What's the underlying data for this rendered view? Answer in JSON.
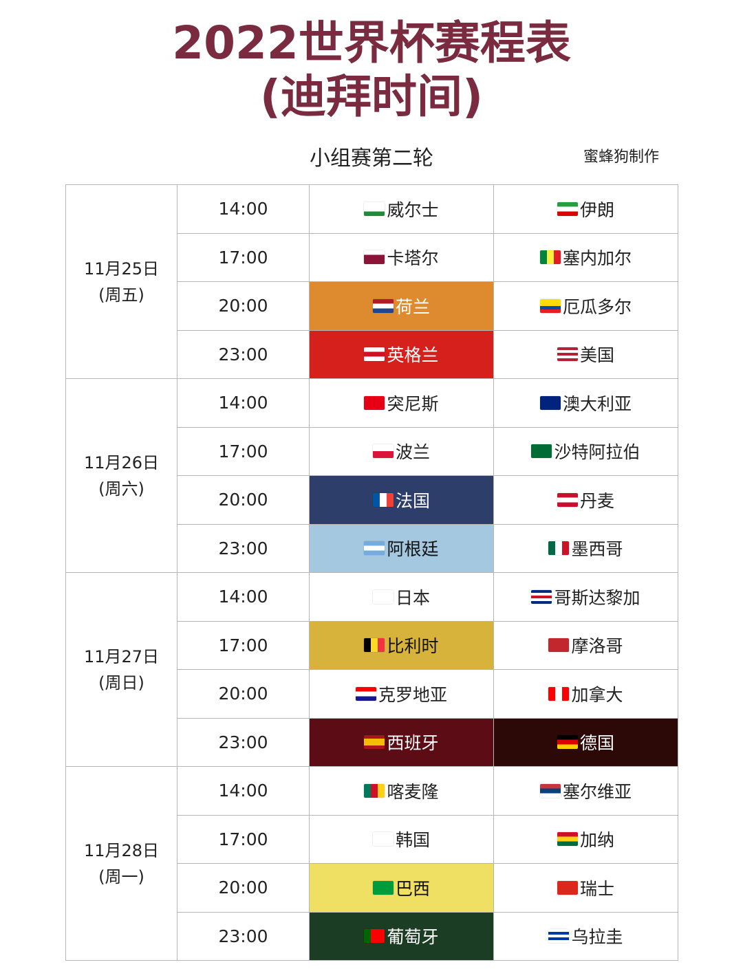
{
  "title_line1": "2022世界杯赛程表",
  "title_line2": "(迪拜时间)",
  "subtitle": "小组赛第二轮",
  "maker": "蜜蜂狗制作",
  "days": [
    {
      "date": "11月25日",
      "weekday": "(周五)",
      "matches": [
        {
          "time": "14:00",
          "home": {
            "name": "威尔士",
            "flag": [
              "#ffffff",
              "#ffffff",
              "#1f8a3b"
            ],
            "bg": null,
            "fg": null
          },
          "away": {
            "name": "伊朗",
            "flag": [
              "#239f40",
              "#ffffff",
              "#da0000"
            ]
          }
        },
        {
          "time": "17:00",
          "home": {
            "name": "卡塔尔",
            "flag": [
              "#ffffff",
              "#8a1538",
              "#8a1538"
            ]
          },
          "away": {
            "name": "塞内加尔",
            "flag": [
              "#00853f",
              "#fdef42",
              "#e31b23"
            ],
            "vertical": true
          }
        },
        {
          "time": "20:00",
          "home": {
            "name": "荷兰",
            "flag": [
              "#ae1c28",
              "#ffffff",
              "#21468b"
            ],
            "bg": "#de8a2f",
            "fg": "#ffffff"
          },
          "away": {
            "name": "厄瓜多尔",
            "flag": [
              "#ffdd00",
              "#ffdd00",
              "#034ea2",
              "#ed1c24"
            ]
          }
        },
        {
          "time": "23:00",
          "home": {
            "name": "英格兰",
            "flag": [
              "#ffffff",
              "#ce1124",
              "#ffffff"
            ],
            "bg": "#d5201c",
            "fg": "#ffffff"
          },
          "away": {
            "name": "美国",
            "flag": [
              "#b22234",
              "#ffffff",
              "#b22234",
              "#ffffff",
              "#b22234"
            ]
          }
        }
      ]
    },
    {
      "date": "11月26日",
      "weekday": "(周六)",
      "matches": [
        {
          "time": "14:00",
          "home": {
            "name": "突尼斯",
            "flag": [
              "#e70013",
              "#e70013",
              "#e70013"
            ]
          },
          "away": {
            "name": "澳大利亚",
            "flag": [
              "#00247d",
              "#00247d",
              "#00247d"
            ]
          }
        },
        {
          "time": "17:00",
          "home": {
            "name": "波兰",
            "flag": [
              "#ffffff",
              "#dc143c"
            ]
          },
          "away": {
            "name": "沙特阿拉伯",
            "flag": [
              "#006c35",
              "#006c35"
            ]
          }
        },
        {
          "time": "20:00",
          "home": {
            "name": "法国",
            "flag": [
              "#0055a4",
              "#ffffff",
              "#ef4135"
            ],
            "vertical": true,
            "bg": "#2c3e69",
            "fg": "#ffffff"
          },
          "away": {
            "name": "丹麦",
            "flag": [
              "#c8102e",
              "#ffffff",
              "#c8102e"
            ]
          }
        },
        {
          "time": "23:00",
          "home": {
            "name": "阿根廷",
            "flag": [
              "#74acdf",
              "#ffffff",
              "#74acdf"
            ],
            "bg": "#a3c8e0",
            "fg": "#111111"
          },
          "away": {
            "name": "墨西哥",
            "flag": [
              "#006847",
              "#ffffff",
              "#ce1126"
            ],
            "vertical": true
          }
        }
      ]
    },
    {
      "date": "11月27日",
      "weekday": "(周日)",
      "matches": [
        {
          "time": "14:00",
          "home": {
            "name": "日本",
            "flag": [
              "#ffffff",
              "#ffffff"
            ]
          },
          "away": {
            "name": "哥斯达黎加",
            "flag": [
              "#002b7f",
              "#ffffff",
              "#ce1126",
              "#ffffff",
              "#002b7f"
            ]
          }
        },
        {
          "time": "17:00",
          "home": {
            "name": "比利时",
            "flag": [
              "#000000",
              "#fdda24",
              "#ef3340"
            ],
            "vertical": true,
            "bg": "#d8b33c",
            "fg": "#111111"
          },
          "away": {
            "name": "摩洛哥",
            "flag": [
              "#c1272d",
              "#c1272d"
            ]
          }
        },
        {
          "time": "20:00",
          "home": {
            "name": "克罗地亚",
            "flag": [
              "#ff0000",
              "#ffffff",
              "#171796"
            ]
          },
          "away": {
            "name": "加拿大",
            "flag": [
              "#ff0000",
              "#ffffff",
              "#ff0000"
            ],
            "vertical": true
          }
        },
        {
          "time": "23:00",
          "home": {
            "name": "西班牙",
            "flag": [
              "#aa151b",
              "#f1bf00",
              "#f1bf00",
              "#aa151b"
            ],
            "bg": "#5c0c14",
            "fg": "#ffffff"
          },
          "away": {
            "name": "德国",
            "flag": [
              "#000000",
              "#dd0000",
              "#ffce00"
            ],
            "bg": "#2c0806",
            "fg": "#ffffff"
          }
        }
      ]
    },
    {
      "date": "11月28日",
      "weekday": "(周一)",
      "matches": [
        {
          "time": "14:00",
          "home": {
            "name": "喀麦隆",
            "flag": [
              "#007a5e",
              "#ce1126",
              "#fcd116"
            ],
            "vertical": true
          },
          "away": {
            "name": "塞尔维亚",
            "flag": [
              "#c6363c",
              "#0c4076",
              "#ffffff"
            ]
          }
        },
        {
          "time": "17:00",
          "home": {
            "name": "韩国",
            "flag": [
              "#ffffff",
              "#ffffff"
            ]
          },
          "away": {
            "name": "加纳",
            "flag": [
              "#ce1126",
              "#fcd116",
              "#006b3f"
            ]
          }
        },
        {
          "time": "20:00",
          "home": {
            "name": "巴西",
            "flag": [
              "#009c3b",
              "#009c3b"
            ],
            "bg": "#efdf63",
            "fg": "#111111"
          },
          "away": {
            "name": "瑞士",
            "flag": [
              "#da291c",
              "#da291c"
            ]
          }
        },
        {
          "time": "23:00",
          "home": {
            "name": "葡萄牙",
            "flag": [
              "#006600",
              "#ff0000",
              "#ff0000"
            ],
            "vertical": true,
            "bg": "#1b3d23",
            "fg": "#ffffff"
          },
          "away": {
            "name": "乌拉圭",
            "flag": [
              "#ffffff",
              "#0038a8",
              "#ffffff",
              "#0038a8",
              "#ffffff"
            ]
          }
        }
      ]
    }
  ]
}
